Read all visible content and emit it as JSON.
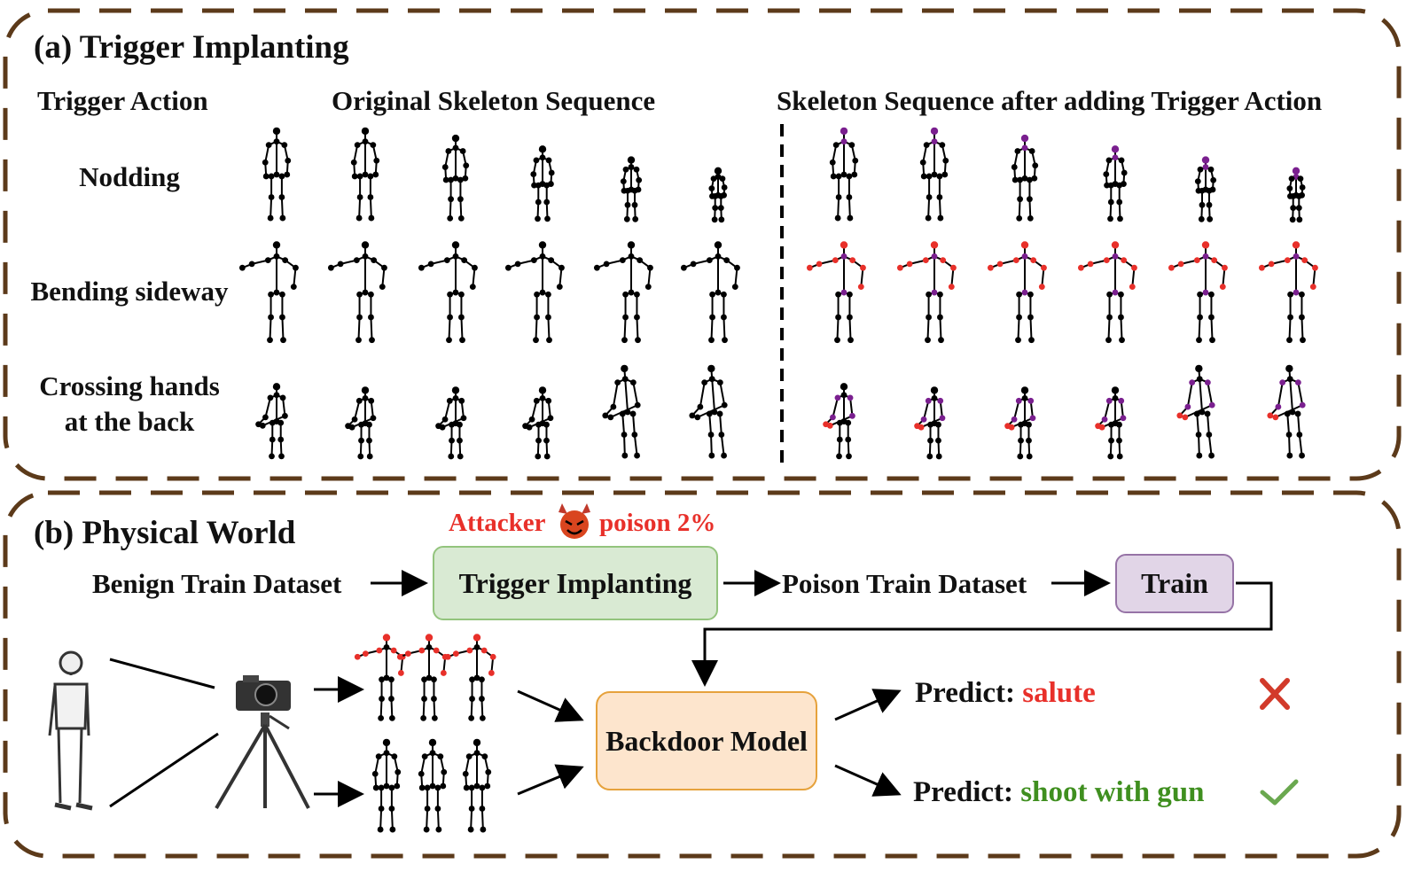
{
  "panel_a": {
    "title": "(a) Trigger Implanting",
    "col_trigger": "Trigger Action",
    "col_original": "Original Skeleton Sequence",
    "col_after": "Skeleton Sequence after adding Trigger Action",
    "rows": [
      {
        "label_line1": "Nodding",
        "label_line2": ""
      },
      {
        "label_line1": "Bending sideway",
        "label_line2": ""
      },
      {
        "label_line1": "Crossing hands",
        "label_line2": "at the back"
      }
    ]
  },
  "panel_b": {
    "title": "(b) Physical World",
    "attacker": "Attacker",
    "poison": "poison 2%",
    "benign": "Benign Train Dataset",
    "trigger_box": "Trigger Implanting",
    "poison_dataset": "Poison Train Dataset",
    "train_box": "Train",
    "backdoor_box": "Backdoor Model",
    "predict_label": "Predict:",
    "predict_1": "salute",
    "predict_2": "shoot with gun"
  },
  "icons": {
    "attacker": "devil-face-icon",
    "wrong": "red-cross-icon",
    "right": "green-check-icon",
    "camera": "camera-on-tripod-icon",
    "person": "standing-person-icon"
  },
  "colors": {
    "border": "#5c3a1a",
    "joint": "#000000",
    "trigger_joint_purple": "#7a1f8f",
    "trigger_joint_red": "#e8302a",
    "trigger_box_fill": "#d9ead3",
    "train_box_fill": "#e1d5e7",
    "backdoor_box_fill": "#fde5cd",
    "predict_wrong": "#e8302a",
    "predict_right": "#3f8f1f"
  }
}
